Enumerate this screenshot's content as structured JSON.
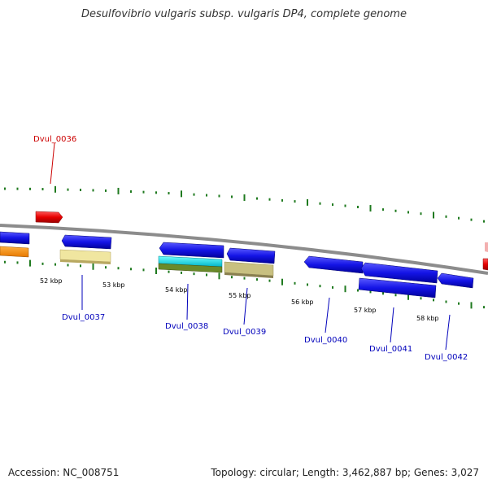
{
  "title": "Desulfovibrio vulgaris subsp. vulgaris DP4, complete genome",
  "footer": {
    "accession": "Accession: NC_008751",
    "stats": "Topology: circular; Length: 3,462,887 bp; Genes: 3,027"
  },
  "colors": {
    "backbone": "#8c8c8c",
    "tick": "#1f7a1f",
    "gene_blue": "#1414e6",
    "gene_red": "#e60000",
    "label_red": "#cc0000",
    "label_blue": "#0000bb"
  },
  "scale_labels": [
    "52 kbp",
    "53 kbp",
    "54 kbp",
    "55 kbp",
    "56 kbp",
    "57 kbp",
    "58 kbp"
  ],
  "gene_labels": [
    {
      "text": "Dvul_0036",
      "color": "red"
    },
    {
      "text": "Dvul_0037",
      "color": "blue"
    },
    {
      "text": "Dvul_0038",
      "color": "blue"
    },
    {
      "text": "Dvul_0039",
      "color": "blue"
    },
    {
      "text": "Dvul_0040",
      "color": "blue"
    },
    {
      "text": "Dvul_0041",
      "color": "blue"
    },
    {
      "text": "Dvul_0042",
      "color": "blue"
    }
  ]
}
